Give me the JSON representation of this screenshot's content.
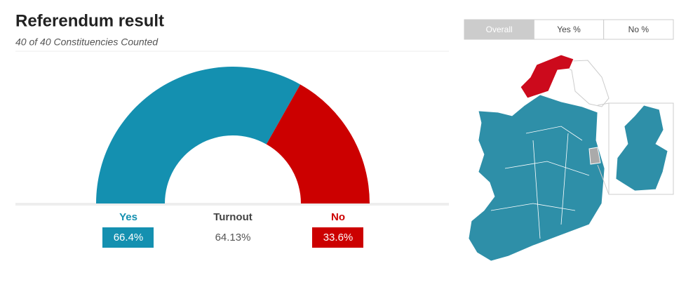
{
  "chart_data": {
    "type": "half-donut",
    "title": "Referendum result",
    "subtitle": "40 of 40 Constituencies Counted",
    "categories": [
      "Yes",
      "No"
    ],
    "values": [
      66.4,
      33.6
    ],
    "value_labels": [
      "66.4%",
      "33.6%"
    ],
    "colors": [
      "#1490b0",
      "#cc0000"
    ],
    "turnout_label": "Turnout",
    "turnout": "64.13%"
  },
  "tabs": [
    "Overall",
    "Yes %",
    "No %"
  ]
}
